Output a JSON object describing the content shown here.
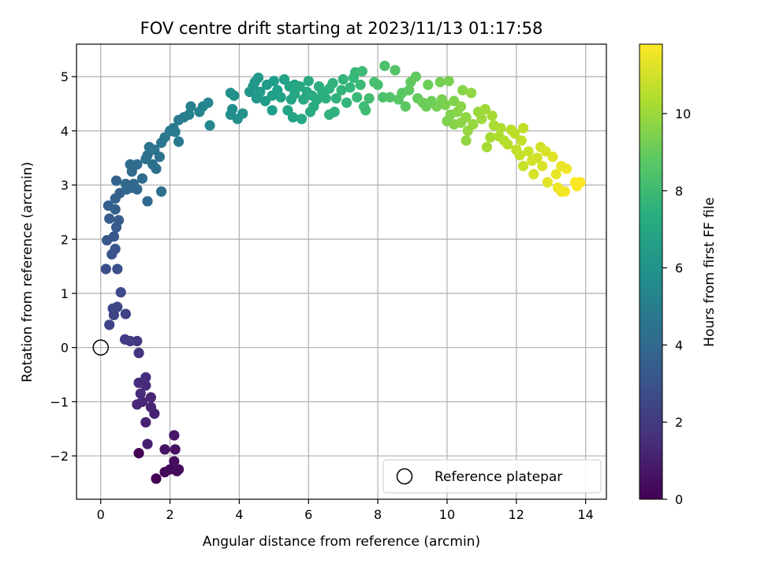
{
  "chart_data": {
    "type": "scatter",
    "title": "FOV centre drift starting at 2023/11/13 01:17:58",
    "xlabel": "Angular distance from reference (arcmin)",
    "ylabel": "Rotation from reference (arcmin)",
    "xlim": [
      -0.7,
      14.6
    ],
    "ylim": [
      -2.8,
      5.6
    ],
    "xticks": [
      0,
      2,
      4,
      6,
      8,
      10,
      12,
      14
    ],
    "yticks": [
      -2,
      -1,
      0,
      1,
      2,
      3,
      4,
      5
    ],
    "xtick_labels": [
      "0",
      "2",
      "4",
      "6",
      "8",
      "10",
      "12",
      "14"
    ],
    "ytick_labels": [
      "−2",
      "−1",
      "0",
      "1",
      "2",
      "3",
      "4",
      "5"
    ],
    "grid": true,
    "legend": {
      "placement": "lower-right",
      "entries": [
        "Reference platepar"
      ]
    },
    "reference_point": {
      "x": 0,
      "y": 0,
      "label": "Reference platepar"
    },
    "colorbar": {
      "label": "Hours from first FF file",
      "range": [
        0,
        11.8
      ],
      "ticks": [
        0,
        2,
        4,
        6,
        8,
        10
      ],
      "tick_labels": [
        "0",
        "2",
        "4",
        "6",
        "8",
        "10"
      ],
      "colormap": "viridis"
    },
    "anchor_path": [
      [
        1.6,
        -2.4
      ],
      [
        2.2,
        -2.2
      ],
      [
        2.1,
        -1.6
      ],
      [
        1.5,
        -1.2
      ],
      [
        1.3,
        -0.9
      ],
      [
        1.2,
        -0.6
      ],
      [
        1.0,
        0.1
      ],
      [
        0.6,
        0.2
      ],
      [
        0.4,
        0.6
      ],
      [
        0.3,
        1.2
      ],
      [
        0.4,
        1.8
      ],
      [
        0.4,
        2.4
      ],
      [
        0.5,
        2.8
      ],
      [
        0.9,
        3.1
      ],
      [
        1.4,
        3.5
      ],
      [
        1.8,
        3.8
      ],
      [
        2.3,
        4.1
      ],
      [
        3.0,
        4.3
      ],
      [
        3.8,
        4.4
      ],
      [
        4.5,
        4.7
      ],
      [
        5.5,
        4.7
      ],
      [
        6.5,
        4.7
      ],
      [
        7.5,
        4.7
      ],
      [
        8.3,
        4.7
      ],
      [
        9.0,
        4.6
      ],
      [
        9.8,
        4.4
      ],
      [
        10.5,
        4.2
      ],
      [
        11.2,
        4.0
      ],
      [
        11.8,
        3.8
      ],
      [
        12.4,
        3.5
      ],
      [
        13.0,
        3.2
      ],
      [
        13.5,
        3.0
      ],
      [
        13.8,
        3.0
      ]
    ],
    "series": [
      {
        "values": [
          [
            1.6,
            -2.42
          ],
          [
            1.85,
            -2.3
          ],
          [
            2.0,
            -2.25
          ],
          [
            2.2,
            -2.28
          ],
          [
            2.25,
            -2.25
          ],
          [
            2.12,
            -2.1
          ],
          [
            1.85,
            -1.88
          ],
          [
            2.15,
            -1.88
          ],
          [
            2.12,
            -1.62
          ]
        ],
        "hours": 0.2
      },
      {
        "values": [
          [
            1.1,
            -1.95
          ],
          [
            1.35,
            -1.78
          ],
          [
            1.3,
            -1.38
          ],
          [
            1.55,
            -1.22
          ],
          [
            1.45,
            -1.1
          ],
          [
            1.2,
            -1.0
          ],
          [
            1.05,
            -1.05
          ],
          [
            1.15,
            -0.85
          ],
          [
            1.45,
            -0.92
          ],
          [
            1.3,
            -0.7
          ],
          [
            1.3,
            -0.55
          ],
          [
            1.1,
            -0.65
          ]
        ],
        "hours": 1.0
      },
      {
        "values": [
          [
            1.1,
            -0.1
          ],
          [
            1.05,
            0.12
          ],
          [
            0.85,
            0.12
          ],
          [
            0.7,
            0.15
          ],
          [
            0.25,
            0.42
          ],
          [
            0.38,
            0.6
          ],
          [
            0.35,
            0.72
          ],
          [
            0.48,
            0.75
          ],
          [
            0.72,
            0.62
          ],
          [
            0.58,
            1.02
          ]
        ],
        "hours": 2.0
      },
      {
        "values": [
          [
            0.15,
            1.45
          ],
          [
            0.48,
            1.45
          ],
          [
            0.32,
            1.72
          ],
          [
            0.42,
            1.82
          ],
          [
            0.38,
            2.05
          ],
          [
            0.45,
            2.22
          ],
          [
            0.52,
            2.35
          ],
          [
            0.18,
            1.98
          ],
          [
            0.25,
            2.38
          ],
          [
            0.42,
            2.55
          ],
          [
            0.22,
            2.62
          ]
        ],
        "hours": 3.0
      },
      {
        "values": [
          [
            0.42,
            2.75
          ],
          [
            0.55,
            2.85
          ],
          [
            0.75,
            2.92
          ],
          [
            0.9,
            2.95
          ],
          [
            1.05,
            2.92
          ],
          [
            0.95,
            3.02
          ],
          [
            0.72,
            3.02
          ],
          [
            0.45,
            3.08
          ],
          [
            1.35,
            2.7
          ],
          [
            1.75,
            2.88
          ],
          [
            1.2,
            3.12
          ],
          [
            0.9,
            3.25
          ],
          [
            1.05,
            3.38
          ],
          [
            1.3,
            3.48
          ],
          [
            1.5,
            3.38
          ],
          [
            1.6,
            3.3
          ],
          [
            1.35,
            3.55
          ],
          [
            1.55,
            3.65
          ],
          [
            1.7,
            3.52
          ],
          [
            1.4,
            3.7
          ],
          [
            0.85,
            3.38
          ]
        ],
        "hours": 4.3
      },
      {
        "values": [
          [
            1.75,
            3.78
          ],
          [
            1.85,
            3.88
          ],
          [
            2.0,
            4.0
          ],
          [
            2.15,
            3.98
          ],
          [
            2.25,
            3.8
          ],
          [
            2.25,
            4.2
          ],
          [
            2.4,
            4.25
          ],
          [
            2.55,
            4.3
          ],
          [
            2.6,
            4.45
          ],
          [
            2.85,
            4.35
          ],
          [
            2.95,
            4.45
          ],
          [
            3.1,
            4.52
          ],
          [
            3.15,
            4.1
          ],
          [
            2.1,
            4.05
          ]
        ],
        "hours": 5.3
      },
      {
        "values": [
          [
            3.75,
            4.3
          ],
          [
            3.95,
            4.22
          ],
          [
            4.1,
            4.32
          ],
          [
            3.8,
            4.4
          ],
          [
            3.75,
            4.7
          ],
          [
            3.85,
            4.65
          ],
          [
            4.3,
            4.72
          ],
          [
            4.4,
            4.82
          ],
          [
            4.45,
            4.9
          ],
          [
            4.5,
            4.6
          ],
          [
            4.55,
            4.98
          ],
          [
            4.6,
            4.72
          ],
          [
            4.75,
            4.55
          ],
          [
            4.8,
            4.85
          ],
          [
            5.0,
            4.92
          ],
          [
            4.95,
            4.65
          ],
          [
            4.95,
            4.38
          ],
          [
            5.1,
            4.75
          ],
          [
            5.2,
            4.62
          ],
          [
            5.3,
            4.95
          ],
          [
            5.45,
            4.82
          ],
          [
            5.5,
            4.58
          ],
          [
            5.6,
            4.68
          ],
          [
            5.6,
            4.85
          ],
          [
            5.75,
            4.82
          ],
          [
            5.4,
            4.38
          ],
          [
            5.55,
            4.25
          ],
          [
            5.8,
            4.22
          ]
        ],
        "hours": 6.3
      },
      {
        "values": [
          [
            5.85,
            4.58
          ],
          [
            5.95,
            4.72
          ],
          [
            6.0,
            4.92
          ],
          [
            6.1,
            4.65
          ],
          [
            6.15,
            4.45
          ],
          [
            6.05,
            4.35
          ],
          [
            6.25,
            4.58
          ],
          [
            6.3,
            4.82
          ],
          [
            6.4,
            4.72
          ],
          [
            6.5,
            4.6
          ],
          [
            6.6,
            4.78
          ],
          [
            6.7,
            4.88
          ],
          [
            6.8,
            4.6
          ],
          [
            6.75,
            4.35
          ],
          [
            6.6,
            4.3
          ],
          [
            6.95,
            4.75
          ],
          [
            7.0,
            4.95
          ],
          [
            7.1,
            4.52
          ],
          [
            7.2,
            4.8
          ],
          [
            7.3,
            4.98
          ],
          [
            7.35,
            5.08
          ],
          [
            7.4,
            4.62
          ],
          [
            7.5,
            4.85
          ],
          [
            7.55,
            5.1
          ],
          [
            7.6,
            4.45
          ],
          [
            7.65,
            4.38
          ],
          [
            7.75,
            4.6
          ],
          [
            7.9,
            4.9
          ]
        ],
        "hours": 7.5
      },
      {
        "values": [
          [
            8.0,
            4.85
          ],
          [
            8.15,
            4.62
          ],
          [
            8.2,
            5.2
          ],
          [
            8.35,
            4.62
          ],
          [
            8.5,
            5.12
          ],
          [
            8.6,
            4.58
          ],
          [
            8.7,
            4.7
          ],
          [
            8.8,
            4.45
          ],
          [
            8.9,
            4.75
          ],
          [
            8.95,
            4.9
          ],
          [
            9.1,
            5.0
          ],
          [
            9.15,
            4.6
          ],
          [
            9.3,
            4.52
          ],
          [
            9.4,
            4.45
          ],
          [
            9.45,
            4.85
          ],
          [
            9.55,
            4.55
          ],
          [
            9.7,
            4.45
          ],
          [
            9.8,
            4.9
          ],
          [
            9.85,
            4.58
          ],
          [
            9.95,
            4.48
          ],
          [
            10.05,
            4.92
          ],
          [
            10.1,
            4.3
          ],
          [
            10.2,
            4.55
          ],
          [
            10.3,
            4.35
          ],
          [
            10.4,
            4.45
          ],
          [
            10.45,
            4.75
          ],
          [
            10.7,
            4.7
          ],
          [
            10.55,
            4.25
          ]
        ],
        "hours": 8.8
      },
      {
        "values": [
          [
            10.0,
            4.18
          ],
          [
            10.2,
            4.12
          ],
          [
            10.4,
            4.15
          ],
          [
            10.55,
            3.82
          ],
          [
            10.6,
            4.0
          ],
          [
            10.75,
            4.12
          ],
          [
            10.9,
            4.35
          ],
          [
            11.0,
            4.22
          ],
          [
            11.1,
            4.4
          ],
          [
            11.15,
            3.7
          ],
          [
            11.25,
            3.88
          ],
          [
            11.3,
            4.28
          ],
          [
            11.35,
            4.1
          ],
          [
            11.5,
            3.9
          ],
          [
            11.55,
            4.05
          ],
          [
            11.65,
            3.82
          ],
          [
            11.75,
            3.75
          ],
          [
            11.85,
            4.02
          ],
          [
            11.95,
            3.95
          ],
          [
            12.0,
            3.65
          ],
          [
            12.1,
            3.55
          ],
          [
            12.15,
            3.82
          ],
          [
            12.2,
            4.05
          ]
        ],
        "hours": 10.0
      },
      {
        "values": [
          [
            12.2,
            3.35
          ],
          [
            12.35,
            3.62
          ],
          [
            12.45,
            3.45
          ],
          [
            12.5,
            3.2
          ],
          [
            12.6,
            3.5
          ],
          [
            12.7,
            3.7
          ],
          [
            12.75,
            3.35
          ],
          [
            12.85,
            3.62
          ],
          [
            12.9,
            3.05
          ],
          [
            13.05,
            3.52
          ],
          [
            13.15,
            3.2
          ],
          [
            13.2,
            2.95
          ],
          [
            13.3,
            2.88
          ],
          [
            13.4,
            2.88
          ],
          [
            13.45,
            3.3
          ],
          [
            13.7,
            3.05
          ],
          [
            13.75,
            2.98
          ],
          [
            13.85,
            3.05
          ],
          [
            13.3,
            3.35
          ]
        ],
        "hours": 11.3
      }
    ]
  }
}
